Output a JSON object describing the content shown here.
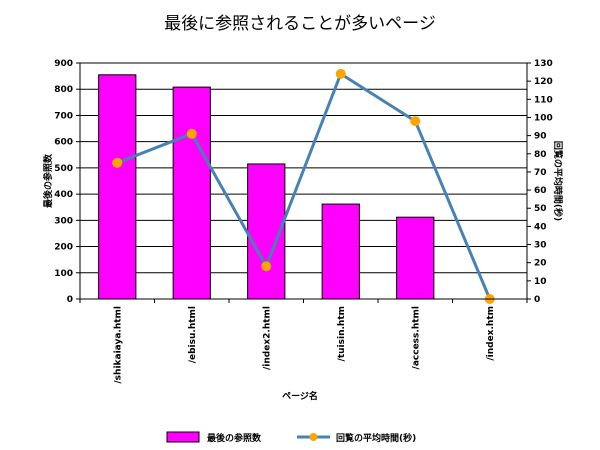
{
  "chart_data": {
    "type": "bar",
    "title": "最後に参照されることが多いページ",
    "xlabel": "ページ名",
    "ylabel": "最後の参照数",
    "y2label": "回覧の平均時間(秒)",
    "categories": [
      "/shikaiaya.html",
      "/ebisu.html",
      "/index2.html",
      "/tuisin.htm",
      "/access.html",
      "/index.htm"
    ],
    "series": [
      {
        "name": "最後の参照数",
        "type": "bar",
        "axis": "left",
        "values": [
          855,
          808,
          515,
          362,
          312,
          0
        ],
        "color": "#FF00FF"
      },
      {
        "name": "回覧の平均時間(秒)",
        "type": "line",
        "axis": "right",
        "values": [
          75,
          91,
          18,
          124,
          98,
          0
        ],
        "color": "#4682B4",
        "marker_color": "#FFA500"
      }
    ],
    "ylim": [
      0,
      900
    ],
    "y_ticks": [
      0,
      100,
      200,
      300,
      400,
      500,
      600,
      700,
      800,
      900
    ],
    "y2lim": [
      0,
      130
    ],
    "y2_ticks": [
      0,
      10,
      20,
      30,
      40,
      50,
      60,
      70,
      80,
      90,
      100,
      110,
      120,
      130
    ],
    "grid": true,
    "legend_position": "bottom"
  }
}
